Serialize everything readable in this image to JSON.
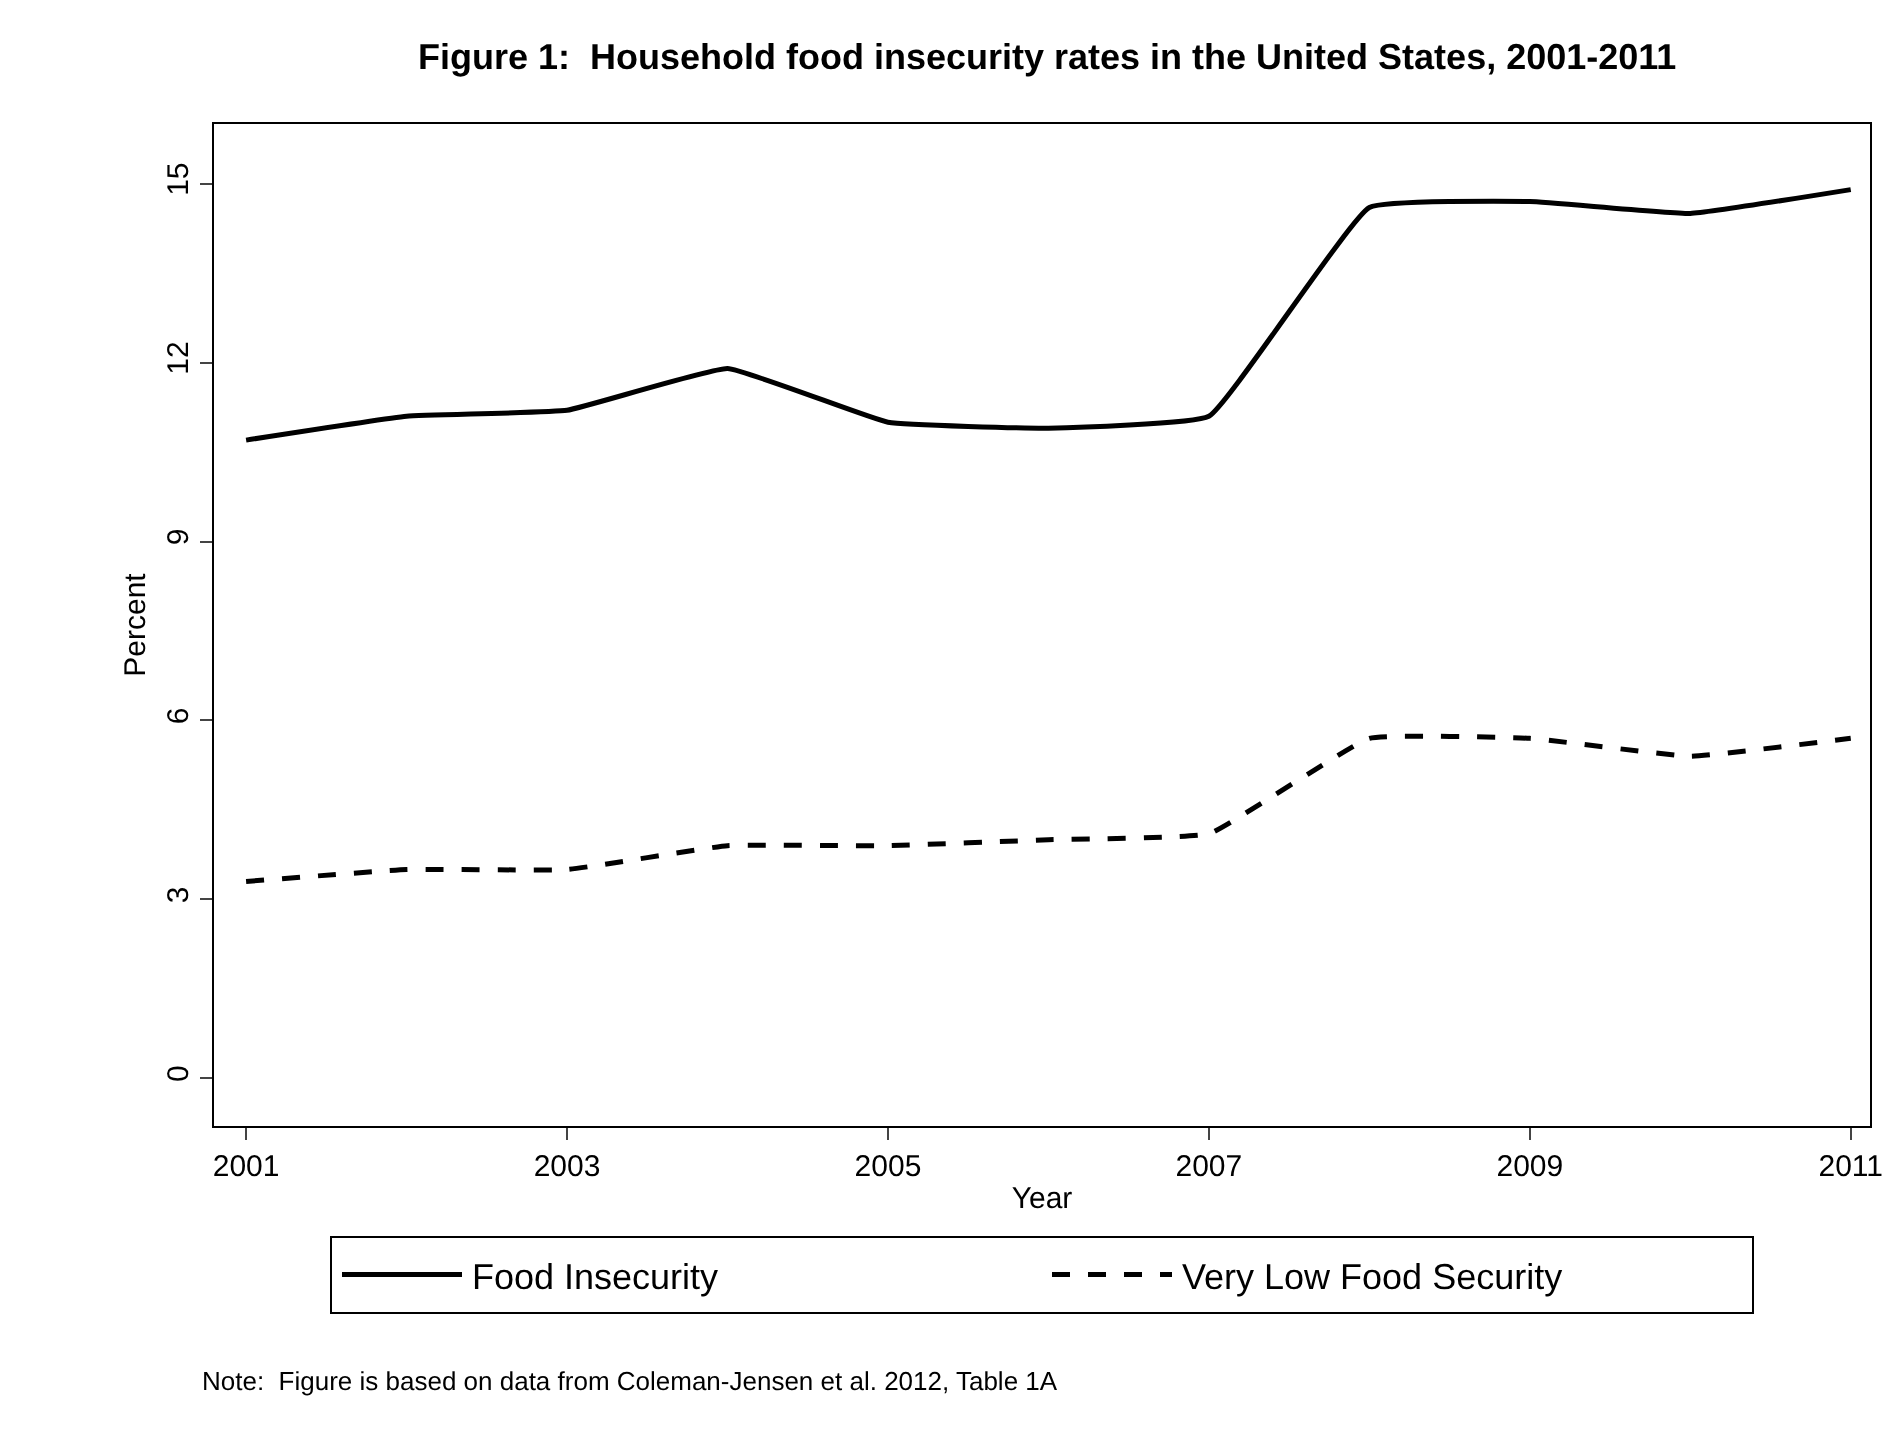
{
  "chart_data": {
    "type": "line",
    "title": "Figure 1:  Household food insecurity rates in the United States, 2001-2011",
    "xlabel": "Year",
    "ylabel": "Percent",
    "x": [
      2001,
      2002,
      2003,
      2004,
      2005,
      2006,
      2007,
      2008,
      2009,
      2010,
      2011
    ],
    "series": [
      {
        "name": "Food Insecurity",
        "color": "#000000",
        "line_style": "solid",
        "values": [
          10.7,
          11.1,
          11.2,
          11.9,
          11.0,
          10.9,
          11.1,
          14.6,
          14.7,
          14.5,
          14.9
        ]
      },
      {
        "name": "Very Low Food Security",
        "color": "#000000",
        "line_style": "dashed",
        "values": [
          3.3,
          3.5,
          3.5,
          3.9,
          3.9,
          4.0,
          4.1,
          5.7,
          5.7,
          5.4,
          5.7
        ]
      }
    ],
    "xlim": [
      2000.8,
      2011.12
    ],
    "xticks": [
      2001,
      2003,
      2005,
      2007,
      2009,
      2011
    ],
    "ylim": [
      -0.8,
      16
    ],
    "yticks": [
      0,
      3,
      6,
      9,
      12,
      15
    ],
    "legend": "bottom",
    "marker": "none",
    "annotations": [
      "Note:  Figure is based on data from Coleman-Jensen et al. 2012, Table 1A"
    ]
  }
}
